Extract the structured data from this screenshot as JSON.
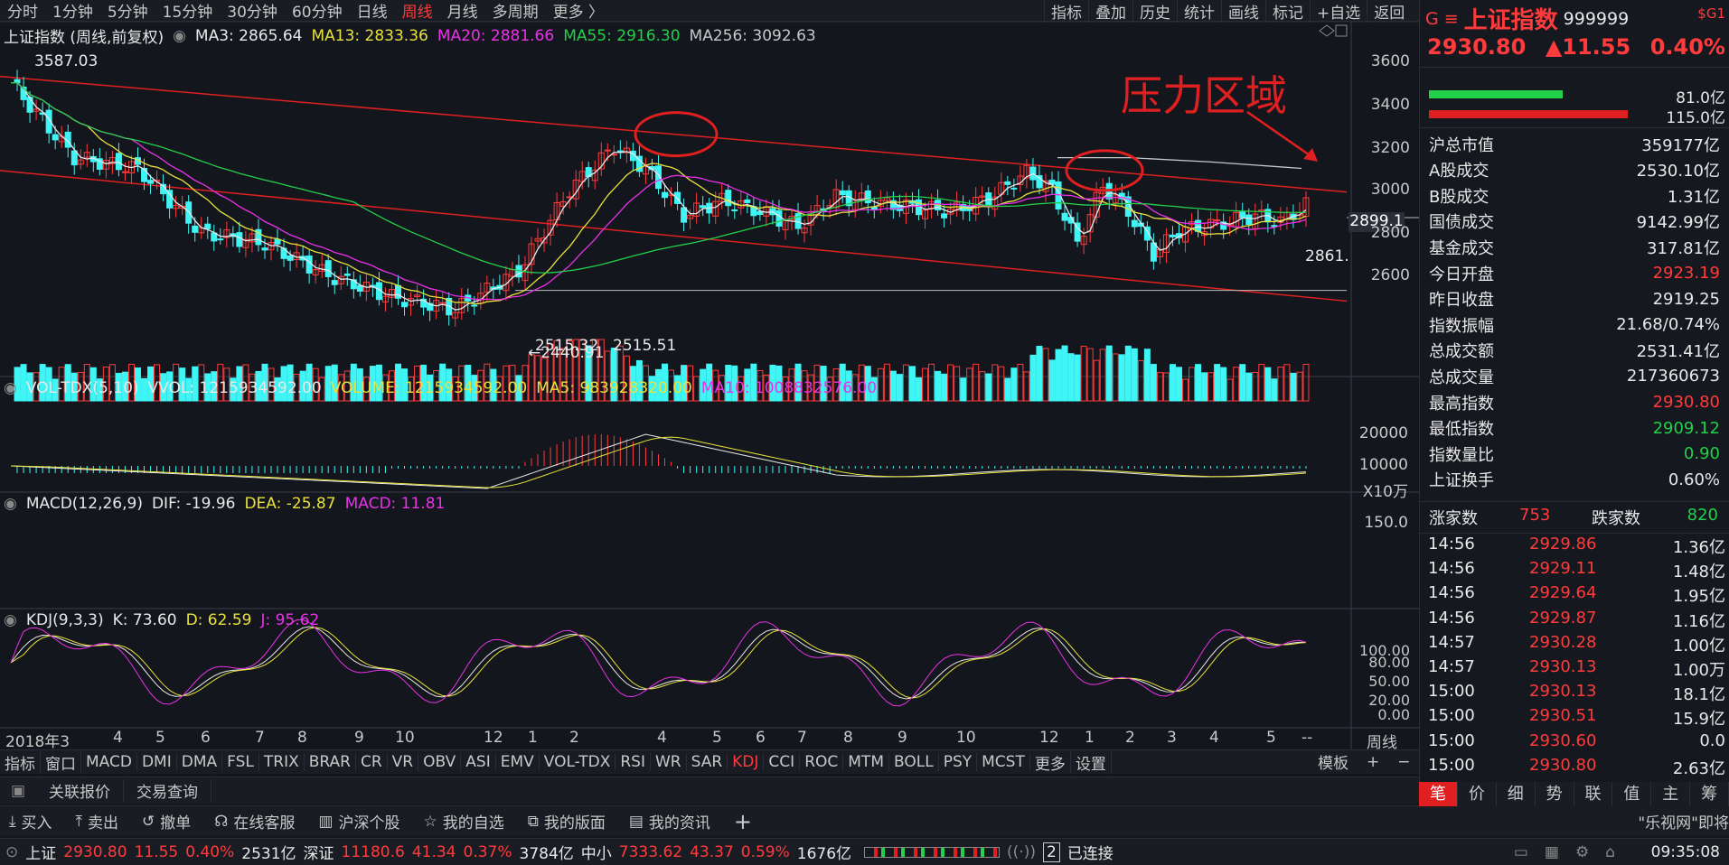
{
  "top_tabs": [
    "分时",
    "1分钟",
    "5分钟",
    "15分钟",
    "30分钟",
    "60分钟",
    "日线",
    "周线",
    "月线",
    "多周期",
    "更多 〉"
  ],
  "top_tab_active": "周线",
  "top_tools": [
    "指标",
    "叠加",
    "历史",
    "统计",
    "画线",
    "标记",
    "+自选",
    "返回"
  ],
  "main_legend": {
    "title": "上证指数 (周线,前复权)",
    "ma3": "MA3: 2865.64",
    "ma13": "MA13: 2833.36",
    "ma20": "MA20: 2881.66",
    "ma55": "MA55: 2916.30",
    "ma256": "MA256: 3092.63"
  },
  "price_axis": [
    "3600",
    "3400",
    "3200",
    "3000",
    "2800",
    "2600"
  ],
  "annotations": {
    "pressure": "压力区域",
    "high": "3587.03",
    "low": "←2440.91",
    "low2": "2515.32",
    "low3": "2515.51",
    "current_tag": "2899.1",
    "last": "2861."
  },
  "vol_legend": {
    "name": "VOL-TDX(5,10)",
    "vvol": "VVOL: 1215934592.00",
    "volume": "VOLUME: 1215934592.00",
    "ma5": "MA5: 983928320.00",
    "ma10": "MA10: 1008832576.00"
  },
  "vol_axis": [
    "20000",
    "10000",
    "X10万"
  ],
  "macd_legend": {
    "name": "MACD(12,26,9)",
    "dif": "DIF: -19.96",
    "dea": "DEA: -25.87",
    "macd": "MACD: 11.81"
  },
  "macd_axis": [
    "150.0"
  ],
  "kdj_legend": {
    "name": "KDJ(9,3,3)",
    "k": "K: 73.60",
    "d": "D: 62.59",
    "j": "J: 95.62"
  },
  "kdj_axis": [
    "100.00",
    "80.00",
    "50.00",
    "20.00",
    "0.00"
  ],
  "x_axis": {
    "labels": [
      "2018年3",
      "4",
      "5",
      "6",
      "7",
      "8",
      "9",
      "10",
      "12",
      "1",
      "2",
      "4",
      "5",
      "6",
      "7",
      "8",
      "9",
      "10",
      "12",
      "1",
      "2",
      "3",
      "4",
      "5",
      "--"
    ],
    "period": "周线"
  },
  "indicator_tabs": [
    "指标",
    "窗口",
    "MACD",
    "DMI",
    "DMA",
    "FSL",
    "TRIX",
    "BRAR",
    "CR",
    "VR",
    "OBV",
    "ASI",
    "EMV",
    "VOL-TDX",
    "RSI",
    "WR",
    "SAR",
    "KDJ",
    "CCI",
    "ROC",
    "MTM",
    "BOLL",
    "PSY",
    "MCST",
    "更多",
    "设置"
  ],
  "indicator_active": "KDJ",
  "indicator_right": [
    "模板",
    "+",
    "−"
  ],
  "sub_tabs": [
    "关联报价",
    "交易查询"
  ],
  "action_buttons": [
    "买入",
    "卖出",
    "撤单",
    "在线客服",
    "沪深个股",
    "我的自选",
    "我的版面",
    "我的资讯"
  ],
  "news_ticker": "\"乐视网\"即将",
  "status": {
    "sh_label": "上证",
    "sh_price": "2930.80",
    "sh_chg": "11.55",
    "sh_pct": "0.40%",
    "sh_amt": "2531亿",
    "sz_label": "深证",
    "sz_price": "11180.6",
    "sz_chg": "41.34",
    "sz_pct": "0.37%",
    "sz_amt": "3784亿",
    "zx_label": "中小",
    "zx_price": "7333.62",
    "zx_chg": "43.37",
    "zx_pct": "0.59%",
    "zx_amt": "1676亿",
    "conn_num": "2",
    "conn": "已连接",
    "time": "09:35:08"
  },
  "quote": {
    "name": "上证指数",
    "code": "999999",
    "badge": "$G1",
    "price": "2930.80",
    "change": "▲11.55",
    "pct": "0.40%",
    "bar1": "81.0亿",
    "bar2": "115.0亿",
    "rows": [
      {
        "label": "沪总市值",
        "value": "359177亿",
        "color": "white"
      },
      {
        "label": "A股成交",
        "value": "2530.10亿",
        "color": "white"
      },
      {
        "label": "B股成交",
        "value": "1.31亿",
        "color": "white"
      },
      {
        "label": "国债成交",
        "value": "9142.99亿",
        "color": "white"
      },
      {
        "label": "基金成交",
        "value": "317.81亿",
        "color": "white"
      },
      {
        "label": "今日开盘",
        "value": "2923.19",
        "color": "red"
      },
      {
        "label": "昨日收盘",
        "value": "2919.25",
        "color": "white"
      },
      {
        "label": "指数振幅",
        "value": "21.68/0.74%",
        "color": "white"
      },
      {
        "label": "总成交额",
        "value": "2531.41亿",
        "color": "white"
      },
      {
        "label": "总成交量",
        "value": "217360673",
        "color": "white"
      },
      {
        "label": "最高指数",
        "value": "2930.80",
        "color": "red"
      },
      {
        "label": "最低指数",
        "value": "2909.12",
        "color": "green"
      },
      {
        "label": "指数量比",
        "value": "0.90",
        "color": "green"
      },
      {
        "label": "上证换手",
        "value": "0.60%",
        "color": "white"
      }
    ],
    "up_label": "涨家数",
    "up": "753",
    "down_label": "跌家数",
    "down": "820"
  },
  "ticks": [
    {
      "t": "14:56",
      "p": "2929.86",
      "v": "1.36亿"
    },
    {
      "t": "14:56",
      "p": "2929.11",
      "v": "1.48亿"
    },
    {
      "t": "14:56",
      "p": "2929.64",
      "v": "1.95亿"
    },
    {
      "t": "14:56",
      "p": "2929.87",
      "v": "1.16亿"
    },
    {
      "t": "14:57",
      "p": "2930.28",
      "v": "1.00亿"
    },
    {
      "t": "14:57",
      "p": "2930.13",
      "v": "1.00万"
    },
    {
      "t": "15:00",
      "p": "2930.13",
      "v": "18.1亿"
    },
    {
      "t": "15:00",
      "p": "2930.51",
      "v": "15.9亿"
    },
    {
      "t": "15:00",
      "p": "2930.60",
      "v": "0.0"
    },
    {
      "t": "15:00",
      "p": "2930.80",
      "v": "2.63亿"
    }
  ],
  "right_tabs": [
    "笔",
    "价",
    "细",
    "势",
    "联",
    "值",
    "主",
    "筹"
  ],
  "right_tab_active": "笔",
  "colors": {
    "up": "#ff3b3b",
    "down": "#3ff5f5",
    "ma3": "#e8e8e8",
    "ma13": "#e8e23a",
    "ma20": "#e832e8",
    "ma55": "#22d04a",
    "ma256": "#c8c8c8",
    "trend": "#e02020"
  }
}
